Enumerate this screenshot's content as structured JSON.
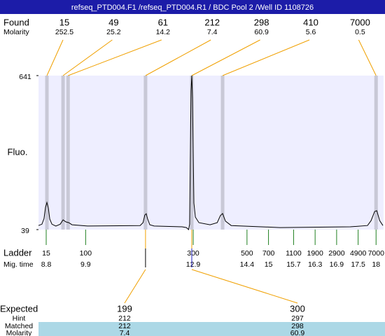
{
  "header": {
    "title": "refseq_PTD004.F1 /refseq_PTD004.R1 / BDC Pool 2 /Well ID 1108726"
  },
  "chart_data": {
    "type": "electropherogram",
    "ylabel": "Fluo.",
    "ylim": [
      39,
      641
    ],
    "yticks": [
      641,
      39
    ],
    "xlim": [
      8.585,
      18.21
    ],
    "found": {
      "label": "Found",
      "molarity_label": "Molarity",
      "sizes": [
        15,
        49,
        61,
        212,
        298,
        410,
        7000
      ],
      "molarity": [
        252.5,
        25.2,
        14.2,
        7.4,
        60.9,
        5.6,
        0.5
      ],
      "times": [
        8.82,
        9.27,
        9.41,
        11.57,
        12.86,
        13.72,
        18.0
      ]
    },
    "ladder": {
      "label": "Ladder",
      "time_label": "Mig. time",
      "sizes": [
        15,
        100,
        300,
        500,
        700,
        1100,
        1900,
        2900,
        4900,
        7000
      ],
      "times": [
        8.8,
        9.9,
        12.9,
        14.4,
        15,
        15.7,
        16.3,
        16.9,
        17.5,
        18
      ]
    },
    "trace": {
      "x": [
        8.585,
        8.68,
        8.74,
        8.78,
        8.82,
        8.86,
        8.9,
        8.96,
        9.07,
        9.19,
        9.27,
        9.35,
        9.43,
        9.52,
        9.95,
        11.42,
        11.5,
        11.55,
        11.59,
        11.63,
        11.69,
        11.81,
        12.59,
        12.71,
        12.77,
        12.8,
        12.84,
        12.86,
        12.88,
        12.92,
        12.96,
        13.06,
        13.37,
        13.57,
        13.66,
        13.72,
        13.8,
        13.96,
        15.32,
        17.28,
        17.76,
        17.86,
        17.96,
        18.02,
        18.1,
        18.19
      ],
      "values": [
        55,
        60,
        82,
        126,
        145,
        123,
        80,
        60,
        53,
        60,
        77,
        69,
        66,
        58,
        53,
        55,
        66,
        96,
        101,
        80,
        58,
        53,
        50,
        47,
        39,
        60,
        581,
        641,
        553,
        143,
        88,
        66,
        58,
        66,
        94,
        102,
        72,
        55,
        47,
        50,
        55,
        74,
        110,
        113,
        74,
        55
      ]
    }
  },
  "expected": {
    "labels": [
      "Expected",
      "Hint",
      "Matched",
      "Molarity"
    ],
    "columns": [
      {
        "expected": 199,
        "hint": 212,
        "matched": 212,
        "molarity": 7.4
      },
      {
        "expected": 300,
        "hint": 297,
        "matched": 298,
        "molarity": 60.9
      }
    ]
  }
}
